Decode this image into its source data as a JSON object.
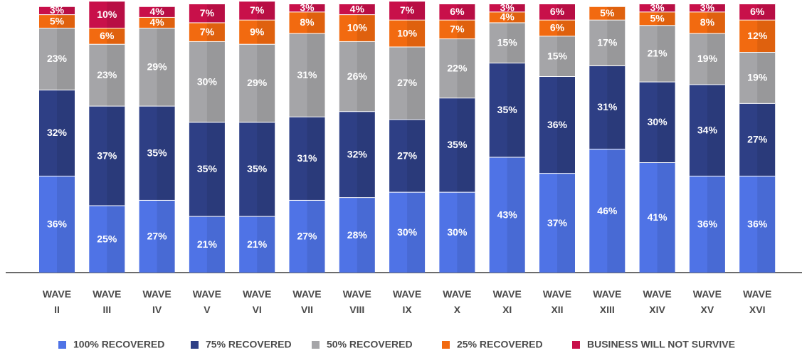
{
  "chart_data": {
    "type": "stacked_bar",
    "categories": [
      "WAVE II",
      "WAVE III",
      "WAVE IV",
      "WAVE V",
      "WAVE VI",
      "WAVE VII",
      "WAVE VIII",
      "WAVE IX",
      "WAVE X",
      "WAVE XI",
      "WAVE XII",
      "WAVE XIII",
      "WAVE XIV",
      "WAVE XV",
      "WAVE XVI"
    ],
    "series": [
      {
        "name": "100% RECOVERED",
        "color": "#4f73e6",
        "values": [
          36,
          25,
          27,
          21,
          21,
          27,
          28,
          30,
          30,
          43,
          37,
          46,
          41,
          36,
          36
        ],
        "value_labels": [
          "36%",
          "25%",
          "27%",
          "21%",
          "21%",
          "27%",
          "28%",
          "30%",
          "30%",
          "43%",
          "37%",
          "46%",
          "41%",
          "36%",
          "36%"
        ]
      },
      {
        "name": "75% RECOVERED",
        "color": "#2e3f85",
        "values": [
          32,
          37,
          35,
          35,
          35,
          31,
          32,
          27,
          35,
          35,
          36,
          31,
          30,
          34,
          27
        ],
        "value_labels": [
          "32%",
          "37%",
          "35%",
          "35%",
          "35%",
          "31%",
          "32%",
          "27%",
          "35%",
          "35%",
          "36%",
          "31%",
          "30%",
          "34%",
          "27%"
        ]
      },
      {
        "name": "50% RECOVERED",
        "color": "#a5a5a8",
        "values": [
          23,
          23,
          29,
          30,
          29,
          31,
          26,
          27,
          22,
          15,
          15,
          17,
          21,
          19,
          19
        ],
        "value_labels": [
          "23%",
          "23%",
          "29%",
          "30%",
          "29%",
          "31%",
          "26%",
          "27%",
          "22%",
          "15%",
          "15%",
          "17%",
          "21%",
          "19%",
          "19%"
        ]
      },
      {
        "name": "25% RECOVERED",
        "color": "#f26a10",
        "values": [
          5,
          6,
          4,
          7,
          9,
          8,
          10,
          10,
          7,
          4,
          6,
          5,
          5,
          8,
          12
        ],
        "value_labels": [
          "5%",
          "6%",
          "4%",
          "7%",
          "9%",
          "8%",
          "10%",
          "10%",
          "7%",
          "4%",
          "6%",
          "5%",
          "5%",
          "8%",
          "12%"
        ]
      },
      {
        "name": "BUSINESS WILL NOT SURVIVE",
        "color": "#c8104a",
        "values": [
          3,
          10,
          4,
          7,
          7,
          3,
          4,
          7,
          6,
          3,
          6,
          null,
          3,
          3,
          6
        ],
        "value_labels": [
          "3%",
          "10%",
          "4%",
          "7%",
          "7%",
          "3%",
          "4%",
          "7%",
          "6%",
          "3%",
          "6%",
          null,
          "3%",
          "3%",
          "6%"
        ]
      }
    ]
  }
}
